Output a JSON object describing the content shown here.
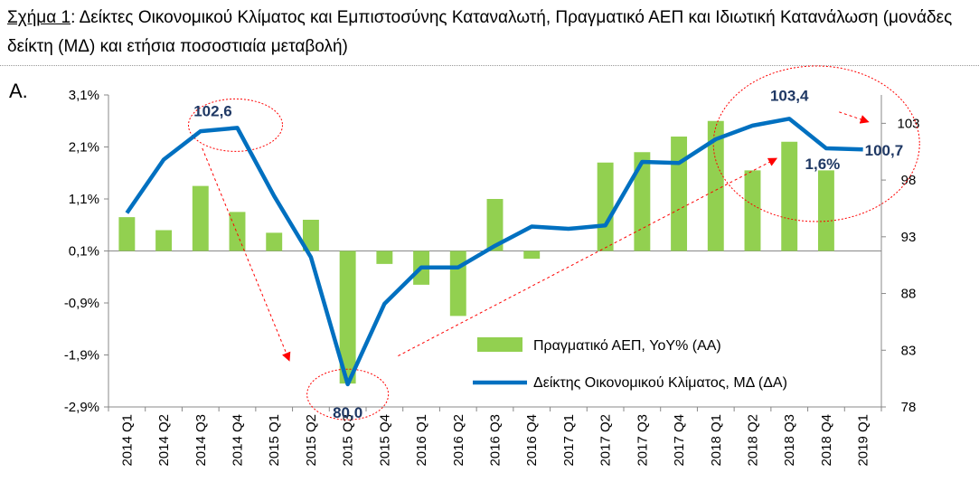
{
  "title": {
    "figure_label": "Σχήμα 1",
    "separator": ":",
    "text": "Δείκτες Οικονομικού Κλίματος και Εμπιστοσύνης Καταναλωτή, Πραγματικό ΑΕΠ και Ιδιωτική Κατανάλωση (μονάδες δείκτη (ΜΔ) και ετήσια ποσοστιαία μεταβολή)"
  },
  "panel_label": "Α.",
  "chart_data": {
    "type": "bar",
    "categories": [
      "2014 Q1",
      "2014 Q2",
      "2014 Q3",
      "2014 Q4",
      "2015 Q1",
      "2015 Q2",
      "2015 Q3",
      "2015 Q4",
      "2016 Q1",
      "2016 Q2",
      "2016 Q3",
      "2016 Q4",
      "2017 Q1",
      "2017 Q2",
      "2017 Q3",
      "2017 Q4",
      "2018 Q1",
      "2018 Q2",
      "2018 Q3",
      "2018 Q4",
      "2019 Q1"
    ],
    "series": [
      {
        "name": "Πραγματικό ΑΕΠ, YoY% (ΑΑ)",
        "kind": "bar",
        "axis": "left",
        "color": "#92d050",
        "values": [
          0.75,
          0.5,
          1.35,
          0.85,
          0.45,
          0.7,
          -2.45,
          -0.15,
          -0.55,
          -1.15,
          1.1,
          -0.05,
          null,
          1.8,
          2.0,
          2.3,
          2.6,
          1.65,
          2.2,
          1.65,
          null
        ]
      },
      {
        "name": "Δείκτης Οικονομικού Κλίματος, ΜΔ (ΔΑ)",
        "kind": "line",
        "axis": "right",
        "color": "#0070c0",
        "values": [
          95.1,
          99.8,
          102.3,
          102.6,
          96.6,
          91.2,
          80.0,
          87.1,
          90.3,
          90.3,
          92.2,
          93.9,
          93.7,
          94.0,
          99.6,
          99.5,
          101.6,
          102.8,
          103.4,
          100.8,
          100.7
        ]
      }
    ],
    "y_left": {
      "ticks": [
        "3,1%",
        "2,1%",
        "1,1%",
        "0,1%",
        "-0,9%",
        "-1,9%",
        "-2,9%"
      ],
      "range": [
        -2.9,
        3.1
      ]
    },
    "y_right": {
      "ticks": [
        "103",
        "98",
        "93",
        "88",
        "83",
        "78"
      ],
      "range": [
        78,
        105.5
      ]
    },
    "annotations": [
      {
        "text": "102,6",
        "category": "2014 Q4"
      },
      {
        "text": "80,0",
        "category": "2015 Q3"
      },
      {
        "text": "103,4",
        "category": "2018 Q3"
      },
      {
        "text": "1,6%",
        "category": "2018 Q4"
      },
      {
        "text": "100,7",
        "category": "2019 Q1"
      }
    ],
    "legend_placement": "bottom-right",
    "grid": false
  }
}
